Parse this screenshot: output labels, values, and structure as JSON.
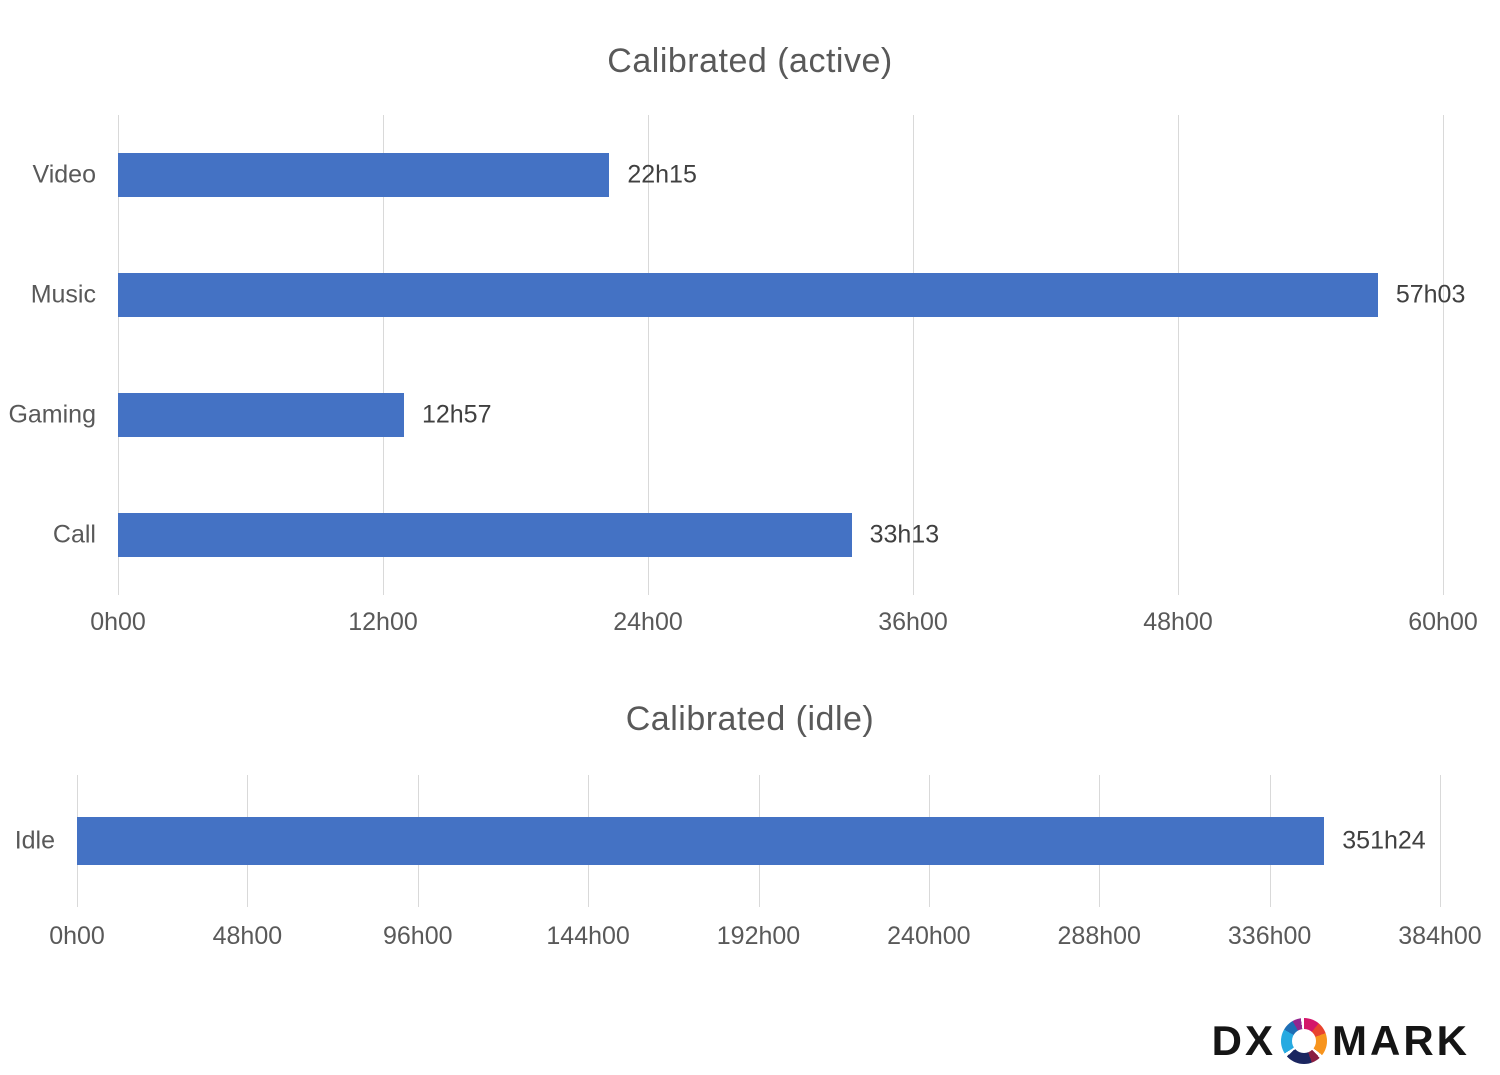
{
  "colors": {
    "bar_fill": "#4472C4",
    "gridline": "#D9D9D9",
    "axis_text": "#595959",
    "title_text": "#595959",
    "value_text": "#404040",
    "background": "#FFFFFF"
  },
  "chart_data": [
    {
      "type": "bar",
      "orientation": "horizontal",
      "title": "Calibrated (active)",
      "categories": [
        "Video",
        "Music",
        "Gaming",
        "Call"
      ],
      "values_hours": [
        22.25,
        57.05,
        12.95,
        33.22
      ],
      "value_labels": [
        "22h15",
        "57h03",
        "12h57",
        "33h13"
      ],
      "xlim": [
        0,
        60
      ],
      "xticks": [
        0,
        12,
        24,
        36,
        48,
        60
      ],
      "xtick_labels": [
        "0h00",
        "12h00",
        "24h00",
        "36h00",
        "48h00",
        "60h00"
      ],
      "grid": true,
      "legend": false
    },
    {
      "type": "bar",
      "orientation": "horizontal",
      "title": "Calibrated (idle)",
      "categories": [
        "Idle"
      ],
      "values_hours": [
        351.4
      ],
      "value_labels": [
        "351h24"
      ],
      "xlim": [
        0,
        384
      ],
      "xticks": [
        0,
        48,
        96,
        144,
        192,
        240,
        288,
        336,
        384
      ],
      "xtick_labels": [
        "0h00",
        "48h00",
        "96h00",
        "144h00",
        "192h00",
        "240h00",
        "288h00",
        "336h00",
        "384h00"
      ],
      "grid": true,
      "legend": false
    }
  ],
  "logo": {
    "brand": "DXOMARK",
    "text_left": "DX",
    "text_right": "MARK"
  }
}
